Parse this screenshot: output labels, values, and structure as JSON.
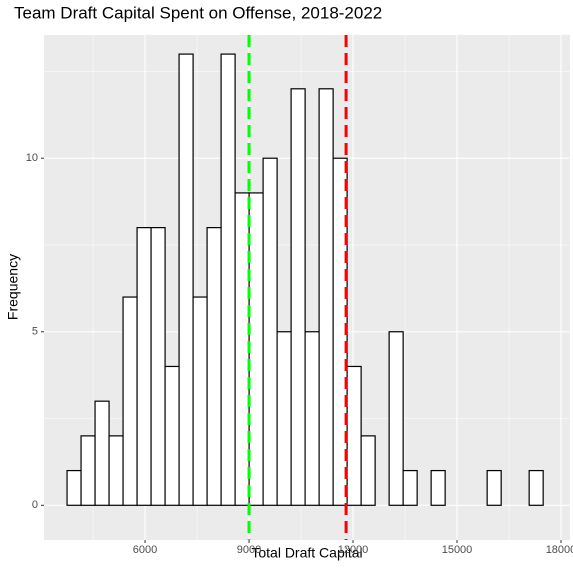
{
  "chart_data": {
    "type": "histogram",
    "title": "Team Draft Capital Spent on Offense, 2018-2022",
    "x_label": "Total Draft Capital",
    "y_label": "Frequency",
    "bins": [
      3750,
      4154,
      4558,
      4962,
      5366,
      5770,
      6174,
      6578,
      6982,
      7386,
      7790,
      8194,
      8598,
      9002,
      9406,
      9810,
      10214,
      10618,
      11022,
      11426,
      11830,
      12234,
      12638,
      13042,
      13446,
      13850,
      14254,
      14658,
      15062,
      15466,
      15870,
      16274,
      16678,
      17082,
      17486
    ],
    "values": [
      1,
      2,
      3,
      2,
      6,
      8,
      8,
      4,
      13,
      6,
      8,
      13,
      9,
      9,
      10,
      5,
      12,
      5,
      12,
      10,
      4,
      2,
      0,
      5,
      1,
      0,
      1,
      0,
      0,
      0,
      1,
      0,
      0,
      1
    ],
    "color": "#ffffff",
    "edge_color": "#000000",
    "vlines": [
      {
        "value": 9000,
        "color": "#00ff00"
      },
      {
        "value": 11800,
        "color": "#ff0000"
      }
    ],
    "xlim": [
      3085,
      18260
    ],
    "ylim": [
      -1.0,
      13.55
    ],
    "xticks": [
      6000,
      9000,
      12000,
      15000,
      18000
    ],
    "yticks": [
      0,
      5,
      10
    ],
    "grid": true
  }
}
